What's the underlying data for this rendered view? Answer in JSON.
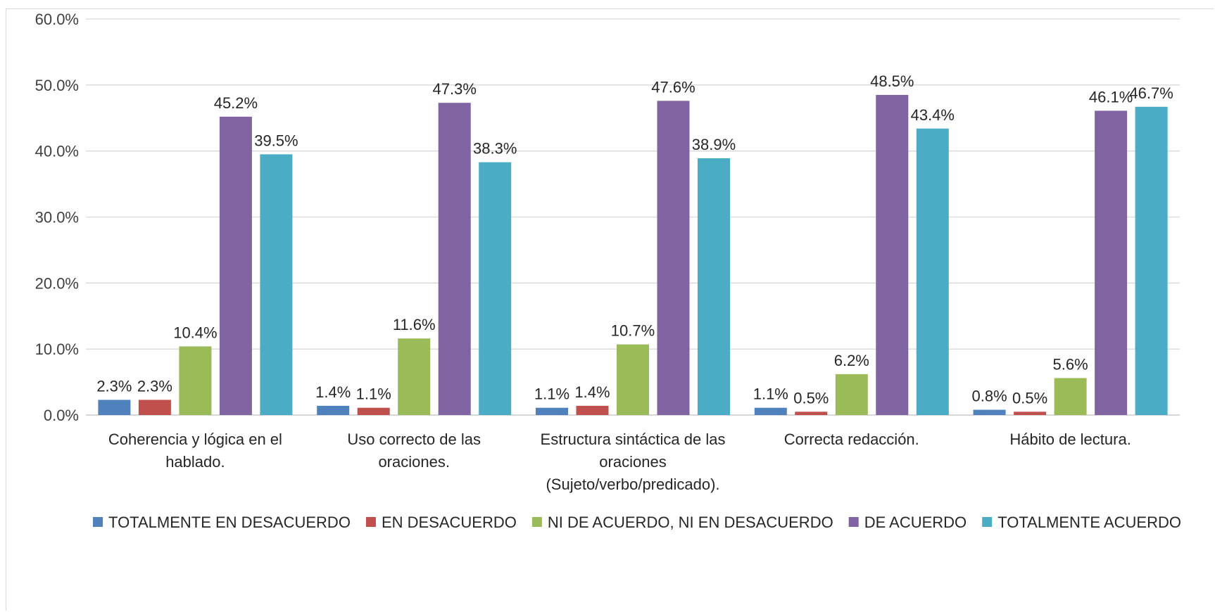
{
  "chart_data": {
    "type": "bar",
    "title": "",
    "xlabel": "",
    "ylabel": "",
    "ylim": [
      0,
      60
    ],
    "y_ticks": [
      "0.0%",
      "10.0%",
      "20.0%",
      "30.0%",
      "40.0%",
      "50.0%",
      "60.0%"
    ],
    "grid": true,
    "legend_position": "bottom",
    "categories": [
      [
        "Coherencia y lógica en el",
        "hablado."
      ],
      [
        "Uso correcto de las",
        "oraciones."
      ],
      [
        "Estructura sintáctica de las",
        "oraciones",
        "(Sujeto/verbo/predicado)."
      ],
      [
        "Correcta redacción."
      ],
      [
        "Hábito de lectura."
      ]
    ],
    "series": [
      {
        "name": "TOTALMENTE EN DESACUERDO",
        "color": "#4f81bd",
        "values": [
          2.3,
          1.4,
          1.1,
          1.1,
          0.8
        ],
        "labels": [
          "2.3%",
          "1.4%",
          "1.1%",
          "1.1%",
          "0.8%"
        ]
      },
      {
        "name": "EN DESACUERDO",
        "color": "#c0504d",
        "values": [
          2.3,
          1.1,
          1.4,
          0.5,
          0.5
        ],
        "labels": [
          "2.3%",
          "1.1%",
          "1.4%",
          "0.5%",
          "0.5%"
        ]
      },
      {
        "name": "NI DE ACUERDO, NI EN DESACUERDO",
        "color": "#9bbb59",
        "values": [
          10.4,
          11.6,
          10.7,
          6.2,
          5.6
        ],
        "labels": [
          "10.4%",
          "11.6%",
          "10.7%",
          "6.2%",
          "5.6%"
        ]
      },
      {
        "name": "DE ACUERDO",
        "color": "#8064a2",
        "values": [
          45.2,
          47.3,
          47.6,
          48.5,
          46.1
        ],
        "labels": [
          "45.2%",
          "47.3%",
          "47.6%",
          "48.5%",
          "46.1%"
        ]
      },
      {
        "name": "TOTALMENTE ACUERDO",
        "color": "#4bacc6",
        "values": [
          39.5,
          38.3,
          38.9,
          43.4,
          46.7
        ],
        "labels": [
          "39.5%",
          "38.3%",
          "38.9%",
          "43.4%",
          "46.7%"
        ]
      }
    ]
  }
}
